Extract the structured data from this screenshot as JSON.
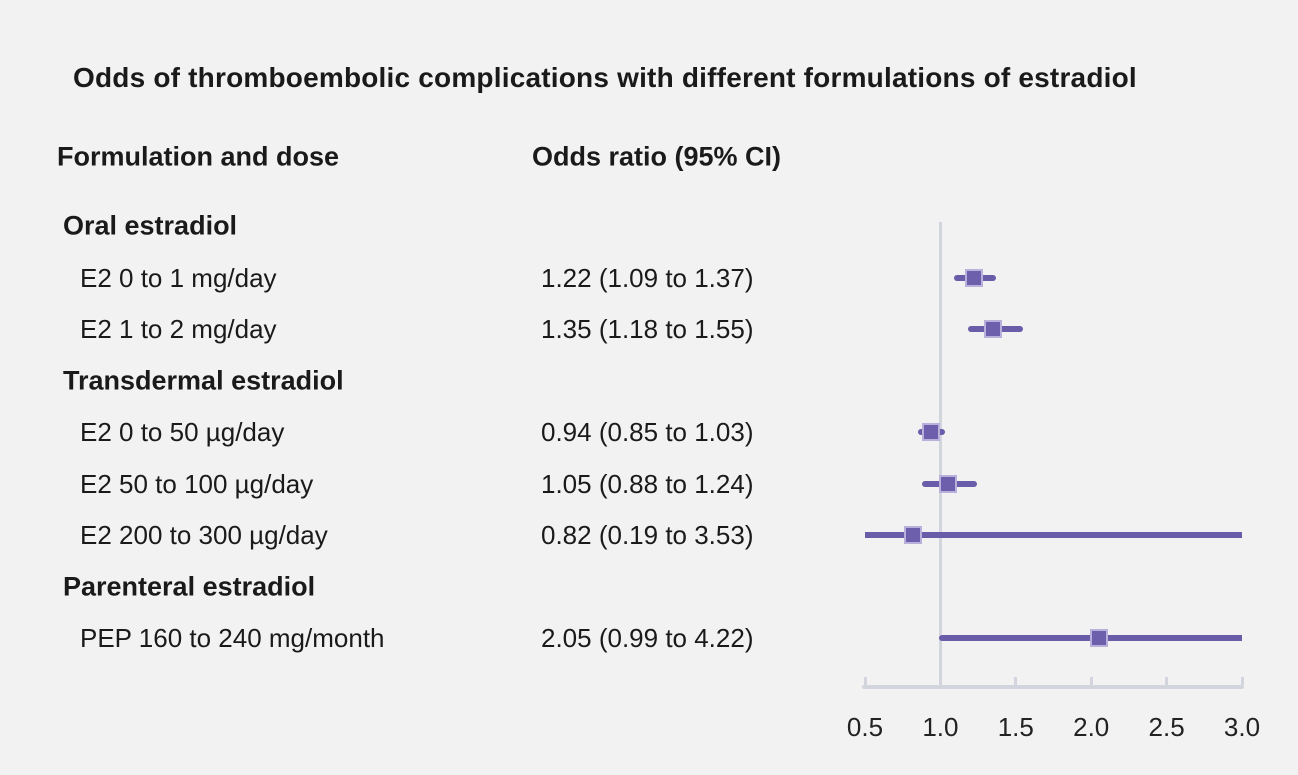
{
  "title": "Odds of thromboembolic complications with different formulations of estradiol",
  "columns": {
    "formulation_and_dose": "Formulation and dose",
    "odds_ratio": "Odds ratio (95% CI)"
  },
  "colors": {
    "background": "#f2f2f2",
    "text": "#1a1a1a",
    "ci_line_purple": "#695ca8",
    "marker_fill_purple": "#6e5fad",
    "marker_border_lavender": "#b9b1dc",
    "axis_gray": "#d2d5de"
  },
  "chart_data": {
    "type": "forest",
    "title": "Odds of thromboembolic complications with different formulations of estradiol",
    "xlabel": "",
    "ylabel": "",
    "xlim": [
      0.5,
      3.0
    ],
    "reference_line": 1.0,
    "x_ticks": [
      {
        "value": 0.5,
        "label": "0.5"
      },
      {
        "value": 1.0,
        "label": "1.0"
      },
      {
        "value": 1.5,
        "label": "1.5"
      },
      {
        "value": 2.0,
        "label": "2.0"
      },
      {
        "value": 2.5,
        "label": "2.5"
      },
      {
        "value": 3.0,
        "label": "3.0"
      }
    ],
    "rows": [
      {
        "kind": "group",
        "label": "Oral estradiol"
      },
      {
        "kind": "item",
        "label": "E2 0 to 1 mg/day",
        "or_text": "1.22 (1.09 to 1.37)",
        "or": 1.22,
        "ci_low": 1.09,
        "ci_high": 1.37
      },
      {
        "kind": "item",
        "label": "E2 1 to 2 mg/day",
        "or_text": "1.35 (1.18 to 1.55)",
        "or": 1.35,
        "ci_low": 1.18,
        "ci_high": 1.55
      },
      {
        "kind": "group",
        "label": "Transdermal estradiol"
      },
      {
        "kind": "item",
        "label": "E2 0 to 50 µg/day",
        "or_text": "0.94 (0.85 to 1.03)",
        "or": 0.94,
        "ci_low": 0.85,
        "ci_high": 1.03
      },
      {
        "kind": "item",
        "label": "E2 50 to 100 µg/day",
        "or_text": "1.05 (0.88 to 1.24)",
        "or": 1.05,
        "ci_low": 0.88,
        "ci_high": 1.24
      },
      {
        "kind": "item",
        "label": "E2 200 to 300 µg/day",
        "or_text": "0.82 (0.19 to 3.53)",
        "or": 0.82,
        "ci_low": 0.19,
        "ci_high": 3.53
      },
      {
        "kind": "group",
        "label": "Parenteral estradiol"
      },
      {
        "kind": "item",
        "label": "PEP 160 to 240 mg/month",
        "or_text": "2.05 (0.99 to 4.22)",
        "or": 2.05,
        "ci_low": 0.99,
        "ci_high": 4.22
      }
    ]
  }
}
